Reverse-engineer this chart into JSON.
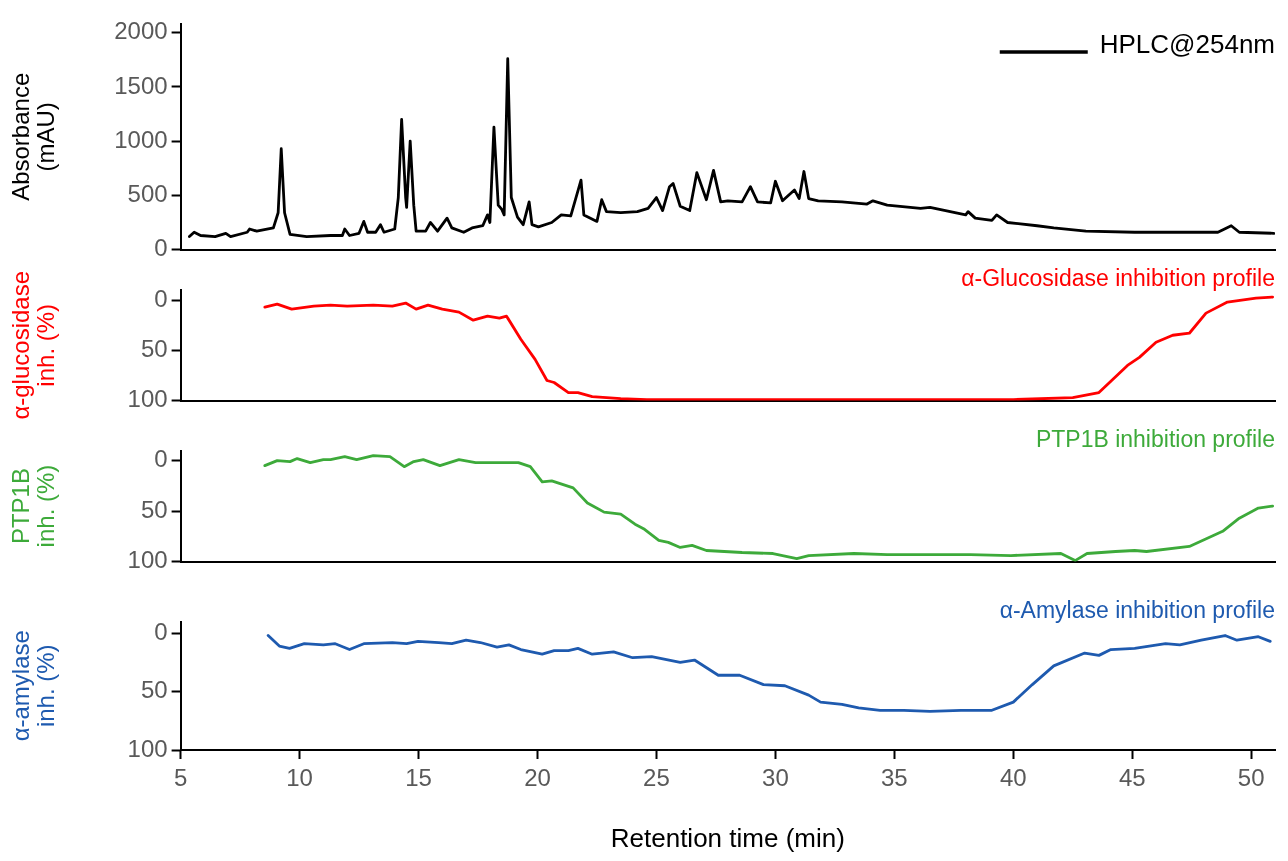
{
  "chart_data": [
    {
      "type": "line",
      "ylabel": "Absorbance (mAU)",
      "xlim": [
        5,
        51
      ],
      "ylim": [
        0,
        2080
      ],
      "yticks": [
        0,
        500,
        1000,
        1500,
        2000
      ],
      "tick_labels": "y",
      "grid": false,
      "legend": "top right",
      "marker": "none",
      "line_style": "solid",
      "series": [
        {
          "name": "HPLC@254nm",
          "color": "#000000",
          "x": [
            5.37,
            5.57,
            5.84,
            6.45,
            6.9,
            7.1,
            7.8,
            7.9,
            8.2,
            8.9,
            9.1,
            9.23,
            9.37,
            9.6,
            10.3,
            11.3,
            11.8,
            11.9,
            12.1,
            12.5,
            12.7,
            12.86,
            13.2,
            13.4,
            13.55,
            14.0,
            14.15,
            14.29,
            14.46,
            14.5,
            14.65,
            14.8,
            14.9,
            15.3,
            15.5,
            15.8,
            16.2,
            16.4,
            16.9,
            17.25,
            17.7,
            17.9,
            18.0,
            18.17,
            18.35,
            18.5,
            18.6,
            18.75,
            18.9,
            19.16,
            19.4,
            19.65,
            19.77,
            20.04,
            20.6,
            21.0,
            21.4,
            21.83,
            21.95,
            22.5,
            22.7,
            22.9,
            23.5,
            24.2,
            24.65,
            25.0,
            25.26,
            25.55,
            25.7,
            26.0,
            26.4,
            26.7,
            27.1,
            27.4,
            27.7,
            28.0,
            28.6,
            28.95,
            29.25,
            29.8,
            30.0,
            30.3,
            30.8,
            31.0,
            31.2,
            31.4,
            31.8,
            32.8,
            33.85,
            34.1,
            34.7,
            36.1,
            36.5,
            38.0,
            38.1,
            38.4,
            39.1,
            39.3,
            39.76,
            41.0,
            41.7,
            43.05,
            45.1,
            48.6,
            49.16,
            49.5,
            50.95
          ],
          "values": [
            120,
            160,
            130,
            120,
            150,
            120,
            160,
            190,
            170,
            200,
            340,
            930,
            340,
            140,
            120,
            130,
            130,
            190,
            130,
            150,
            260,
            160,
            160,
            230,
            160,
            190,
            480,
            1200,
            480,
            390,
            1000,
            410,
            170,
            170,
            250,
            170,
            290,
            200,
            160,
            200,
            220,
            320,
            250,
            1130,
            410,
            370,
            320,
            1760,
            480,
            300,
            230,
            440,
            230,
            210,
            250,
            320,
            310,
            640,
            320,
            260,
            460,
            350,
            340,
            350,
            380,
            480,
            360,
            580,
            610,
            400,
            360,
            710,
            460,
            730,
            440,
            450,
            440,
            580,
            440,
            430,
            630,
            450,
            550,
            470,
            720,
            470,
            450,
            440,
            420,
            450,
            410,
            380,
            390,
            320,
            350,
            290,
            270,
            320,
            250,
            220,
            200,
            170,
            160,
            160,
            220,
            160,
            150
          ]
        }
      ]
    },
    {
      "type": "line",
      "ylabel": "α-glucosidase inh. (%)",
      "xlim": [
        5,
        51
      ],
      "ylim": [
        100,
        -10
      ],
      "yticks": [
        0,
        50,
        100
      ],
      "tick_labels": "y",
      "grid": false,
      "marker": "none",
      "line_style": "solid",
      "series": [
        {
          "name": "α-Glucosidase inhibition profile",
          "color": "#ff0000",
          "x": [
            8.54,
            9.06,
            9.67,
            10.6,
            11.3,
            12.0,
            13.1,
            13.9,
            14.46,
            14.9,
            15.4,
            16.0,
            16.7,
            17.3,
            17.9,
            18.4,
            18.7,
            19.3,
            19.9,
            20.4,
            20.7,
            21.3,
            21.7,
            22.3,
            23.5,
            24.6,
            30,
            35,
            40,
            42.5,
            43.6,
            44.8,
            45.3,
            46.0,
            46.7,
            47.4,
            48.1,
            49.0,
            50.2,
            50.9
          ],
          "values": [
            7,
            4,
            9,
            6,
            5,
            6,
            5,
            6,
            3,
            9,
            5,
            9,
            12,
            20,
            16,
            18,
            16,
            39,
            59,
            80,
            82,
            92,
            92,
            96,
            98,
            99,
            99,
            99,
            99,
            97,
            92,
            65,
            57,
            42,
            35,
            33,
            13,
            2,
            -2,
            -3
          ]
        }
      ]
    },
    {
      "type": "line",
      "ylabel": "PTP1B inh. (%)",
      "xlim": [
        5,
        51
      ],
      "ylim": [
        100,
        -10
      ],
      "yticks": [
        0,
        50,
        100
      ],
      "tick_labels": "y",
      "grid": false,
      "marker": "none",
      "line_style": "solid",
      "series": [
        {
          "name": "PTP1B inhibition profile",
          "color": "#3daa3a",
          "x": [
            8.54,
            9.06,
            9.6,
            9.9,
            10.45,
            11.0,
            11.3,
            11.9,
            12.4,
            13.1,
            13.8,
            14.4,
            14.8,
            15.2,
            15.9,
            16.7,
            17.4,
            18.3,
            19.2,
            19.7,
            20.2,
            20.6,
            21.5,
            22.1,
            22.8,
            23.5,
            24.1,
            24.5,
            25.1,
            25.5,
            26.0,
            26.5,
            27.1,
            28.6,
            29.9,
            30.9,
            31.4,
            33.3,
            34.7,
            36.4,
            38.2,
            39.9,
            42.0,
            42.6,
            43.1,
            44.3,
            45.1,
            45.6,
            47.4,
            48.8,
            49.5,
            50.3,
            50.9
          ],
          "values": [
            5,
            0,
            1,
            -2,
            2,
            -1,
            -1,
            -4,
            -1,
            -5,
            -4,
            6,
            1,
            -1,
            5,
            -1,
            2,
            2,
            2,
            6,
            21,
            20,
            27,
            42,
            51,
            53,
            63,
            68,
            79,
            81,
            86,
            84,
            89,
            91,
            92,
            97,
            94,
            92,
            93,
            93,
            93,
            94,
            92,
            99,
            92,
            90,
            89,
            90,
            85,
            70,
            57,
            47,
            45
          ]
        }
      ]
    },
    {
      "type": "line",
      "ylabel": "α-amylase inh. (%)",
      "xlabel": "Retention time (min)",
      "xlim": [
        5,
        51
      ],
      "xticks": [
        5,
        10,
        15,
        20,
        25,
        30,
        35,
        40,
        45,
        50
      ],
      "ylim": [
        100,
        -10
      ],
      "yticks": [
        0,
        50,
        100
      ],
      "grid": false,
      "marker": "none",
      "line_style": "solid",
      "series": [
        {
          "name": "α-Amylase inhibition profile",
          "color": "#1e5aaf",
          "x": [
            8.68,
            9.15,
            9.58,
            10.2,
            11.0,
            11.5,
            12.1,
            12.7,
            13.9,
            14.5,
            14.98,
            15.85,
            16.4,
            17.0,
            17.6,
            18.3,
            18.8,
            19.3,
            20.2,
            20.7,
            21.3,
            21.7,
            22.3,
            23.2,
            24.0,
            24.8,
            26.0,
            26.6,
            27.6,
            28.5,
            29.5,
            30.4,
            31.4,
            31.9,
            32.8,
            33.5,
            34.4,
            35.4,
            36.5,
            37.8,
            39.1,
            40.0,
            40.8,
            41.7,
            43.0,
            43.6,
            44.1,
            45.1,
            46.4,
            47.0,
            47.9,
            48.9,
            49.4,
            50.3,
            50.8
          ],
          "values": [
            2,
            11,
            13,
            9,
            10,
            9,
            14,
            9,
            8,
            9,
            7,
            8,
            9,
            6,
            8,
            12,
            10,
            14,
            18,
            15,
            15,
            13,
            18,
            16,
            21,
            20,
            25,
            23,
            36,
            36,
            44,
            45,
            53,
            59,
            61,
            64,
            66,
            66,
            67,
            66,
            66,
            59,
            44,
            28,
            17,
            19,
            14,
            13,
            9,
            10,
            6,
            2,
            6,
            3,
            7
          ]
        }
      ]
    }
  ]
}
